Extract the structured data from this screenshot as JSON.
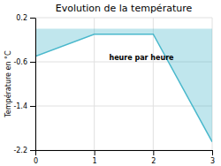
{
  "chart_data": {
    "type": "area",
    "title": "Evolution de la température",
    "y_label": "Température en °C",
    "annotation": "heure par heure",
    "x": [
      0,
      1,
      2,
      3
    ],
    "values": [
      -0.5,
      -0.1,
      -0.1,
      -2.05
    ],
    "color": "#4ab8cc",
    "xlim": [
      0,
      3
    ],
    "ylim": [
      -2.2,
      0.2
    ],
    "xticks": [
      0,
      1,
      2,
      3
    ],
    "yticks": [
      0.2,
      -0.6,
      -1.4,
      -2.2
    ],
    "grid": true
  }
}
